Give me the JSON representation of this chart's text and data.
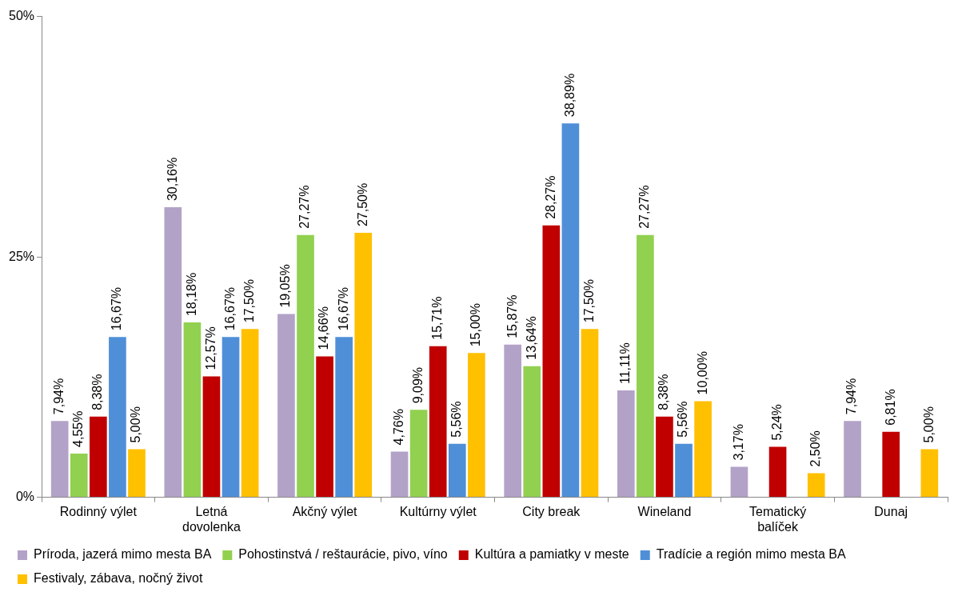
{
  "chart_data": {
    "type": "bar",
    "categories": [
      "Rodinný výlet",
      "Letná dovolenka",
      "Akčný výlet",
      "Kultúrny výlet",
      "City break",
      "Wineland",
      "Tematický balíček",
      "Dunaj"
    ],
    "series": [
      {
        "name": "Príroda, jazerá mimo mesta BA",
        "color": "#b3a2c7",
        "values": [
          7.94,
          30.16,
          19.05,
          4.76,
          15.87,
          11.11,
          3.17,
          7.94
        ],
        "value_labels": [
          "7,94%",
          "30,16%",
          "19,05%",
          "4,76%",
          "15,87%",
          "11,11%",
          "3,17%",
          "7,94%"
        ]
      },
      {
        "name": "Pohostinstvá / reštaurácie, pivo, víno",
        "color": "#92d050",
        "values": [
          4.55,
          18.18,
          27.27,
          9.09,
          13.64,
          27.27,
          null,
          null
        ],
        "value_labels": [
          "4,55%",
          "18,18%",
          "27,27%",
          "9,09%",
          "13,64%",
          "27,27%",
          null,
          null
        ]
      },
      {
        "name": "Kultúra a pamiatky v meste",
        "color": "#c00000",
        "values": [
          8.38,
          12.57,
          14.66,
          15.71,
          28.27,
          8.38,
          5.24,
          6.81
        ],
        "value_labels": [
          "8,38%",
          "12,57%",
          "14,66%",
          "15,71%",
          "28,27%",
          "8,38%",
          "5,24%",
          "6,81%"
        ]
      },
      {
        "name": "Tradície a región mimo mesta BA",
        "color": "#4f8fd8",
        "values": [
          16.67,
          16.67,
          16.67,
          5.56,
          38.89,
          5.56,
          null,
          null
        ],
        "value_labels": [
          "16,67%",
          "16,67%",
          "16,67%",
          "5,56%",
          "38,89%",
          "5,56%",
          null,
          null
        ]
      },
      {
        "name": "Festivaly, zábava, nočný život",
        "color": "#ffc000",
        "values": [
          5.0,
          17.5,
          27.5,
          15.0,
          17.5,
          10.0,
          2.5,
          5.0
        ],
        "value_labels": [
          "5,00%",
          "17,50%",
          "27,50%",
          "15,00%",
          "17,50%",
          "10,00%",
          "2,50%",
          "5,00%"
        ]
      }
    ],
    "ylim": [
      0,
      50
    ],
    "yticks": [
      {
        "value": 0,
        "label": "0%"
      },
      {
        "value": 25,
        "label": "25%"
      },
      {
        "value": 50,
        "label": "50%"
      }
    ],
    "grid": false,
    "legend": "bottom"
  }
}
